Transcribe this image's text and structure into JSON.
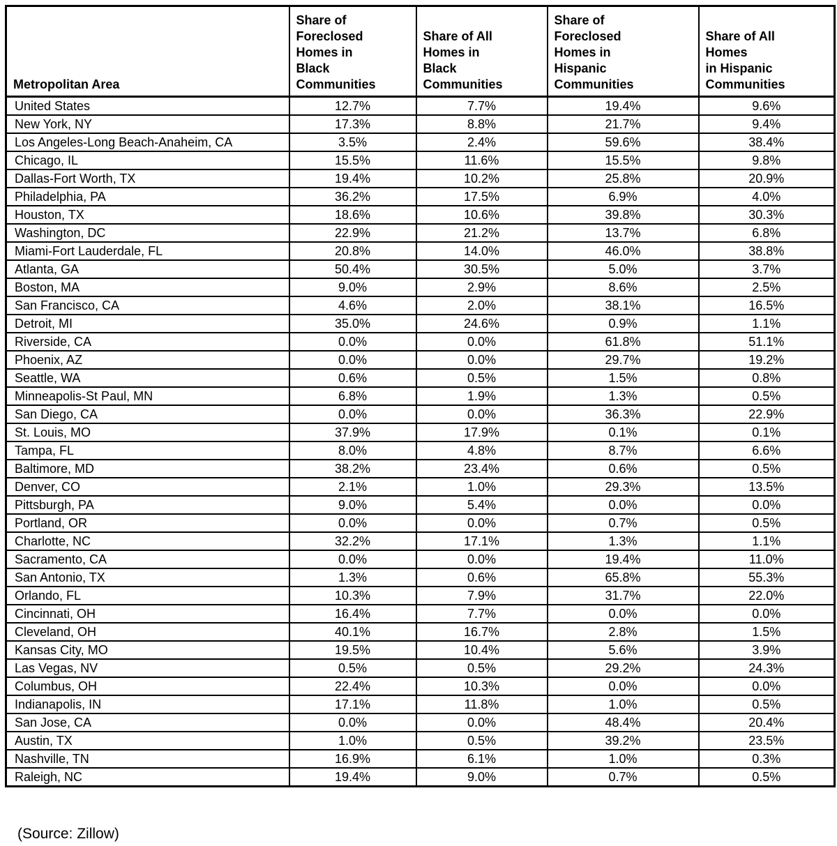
{
  "table": {
    "header": [
      "Metropolitan Area",
      "Share of\nForeclosed\nHomes in\nBlack\nCommunities",
      "Share of All\nHomes in\nBlack\nCommunities",
      "Share of\nForeclosed\nHomes in\nHispanic\nCommunities",
      "Share of All\nHomes\nin Hispanic\nCommunities"
    ]
  },
  "chart_data": {
    "type": "table",
    "columns": [
      "Metropolitan Area",
      "Share of Foreclosed Homes in Black Communities",
      "Share of All Homes in Black Communities",
      "Share of Foreclosed Homes in Hispanic Communities",
      "Share of All Homes in Hispanic Communities"
    ],
    "unit": "%",
    "value_format": "one_decimal_percent",
    "rows": [
      [
        "United States",
        12.7,
        7.7,
        19.4,
        9.6
      ],
      [
        "New York, NY",
        17.3,
        8.8,
        21.7,
        9.4
      ],
      [
        "Los Angeles-Long Beach-Anaheim, CA",
        3.5,
        2.4,
        59.6,
        38.4
      ],
      [
        "Chicago, IL",
        15.5,
        11.6,
        15.5,
        9.8
      ],
      [
        "Dallas-Fort Worth, TX",
        19.4,
        10.2,
        25.8,
        20.9
      ],
      [
        "Philadelphia, PA",
        36.2,
        17.5,
        6.9,
        4.0
      ],
      [
        "Houston, TX",
        18.6,
        10.6,
        39.8,
        30.3
      ],
      [
        "Washington, DC",
        22.9,
        21.2,
        13.7,
        6.8
      ],
      [
        "Miami-Fort Lauderdale, FL",
        20.8,
        14.0,
        46.0,
        38.8
      ],
      [
        "Atlanta, GA",
        50.4,
        30.5,
        5.0,
        3.7
      ],
      [
        "Boston, MA",
        9.0,
        2.9,
        8.6,
        2.5
      ],
      [
        "San Francisco, CA",
        4.6,
        2.0,
        38.1,
        16.5
      ],
      [
        "Detroit, MI",
        35.0,
        24.6,
        0.9,
        1.1
      ],
      [
        "Riverside, CA",
        0.0,
        0.0,
        61.8,
        51.1
      ],
      [
        "Phoenix, AZ",
        0.0,
        0.0,
        29.7,
        19.2
      ],
      [
        "Seattle, WA",
        0.6,
        0.5,
        1.5,
        0.8
      ],
      [
        "Minneapolis-St Paul, MN",
        6.8,
        1.9,
        1.3,
        0.5
      ],
      [
        "San Diego, CA",
        0.0,
        0.0,
        36.3,
        22.9
      ],
      [
        "St. Louis, MO",
        37.9,
        17.9,
        0.1,
        0.1
      ],
      [
        "Tampa, FL",
        8.0,
        4.8,
        8.7,
        6.6
      ],
      [
        "Baltimore, MD",
        38.2,
        23.4,
        0.6,
        0.5
      ],
      [
        "Denver, CO",
        2.1,
        1.0,
        29.3,
        13.5
      ],
      [
        "Pittsburgh, PA",
        9.0,
        5.4,
        0.0,
        0.0
      ],
      [
        "Portland, OR",
        0.0,
        0.0,
        0.7,
        0.5
      ],
      [
        "Charlotte, NC",
        32.2,
        17.1,
        1.3,
        1.1
      ],
      [
        "Sacramento, CA",
        0.0,
        0.0,
        19.4,
        11.0
      ],
      [
        "San Antonio, TX",
        1.3,
        0.6,
        65.8,
        55.3
      ],
      [
        "Orlando, FL",
        10.3,
        7.9,
        31.7,
        22.0
      ],
      [
        "Cincinnati, OH",
        16.4,
        7.7,
        0.0,
        0.0
      ],
      [
        "Cleveland, OH",
        40.1,
        16.7,
        2.8,
        1.5
      ],
      [
        "Kansas City, MO",
        19.5,
        10.4,
        5.6,
        3.9
      ],
      [
        "Las Vegas, NV",
        0.5,
        0.5,
        29.2,
        24.3
      ],
      [
        "Columbus, OH",
        22.4,
        10.3,
        0.0,
        0.0
      ],
      [
        "Indianapolis, IN",
        17.1,
        11.8,
        1.0,
        0.5
      ],
      [
        "San Jose, CA",
        0.0,
        0.0,
        48.4,
        20.4
      ],
      [
        "Austin, TX",
        1.0,
        0.5,
        39.2,
        23.5
      ],
      [
        "Nashville, TN",
        16.9,
        6.1,
        1.0,
        0.3
      ],
      [
        "Raleigh, NC",
        19.4,
        9.0,
        0.7,
        0.5
      ]
    ],
    "source": "(Source: Zillow)"
  },
  "footer": {
    "source": "(Source: Zillow)"
  },
  "colors": {
    "border": "#000000",
    "text": "#000000",
    "background": "#ffffff"
  }
}
